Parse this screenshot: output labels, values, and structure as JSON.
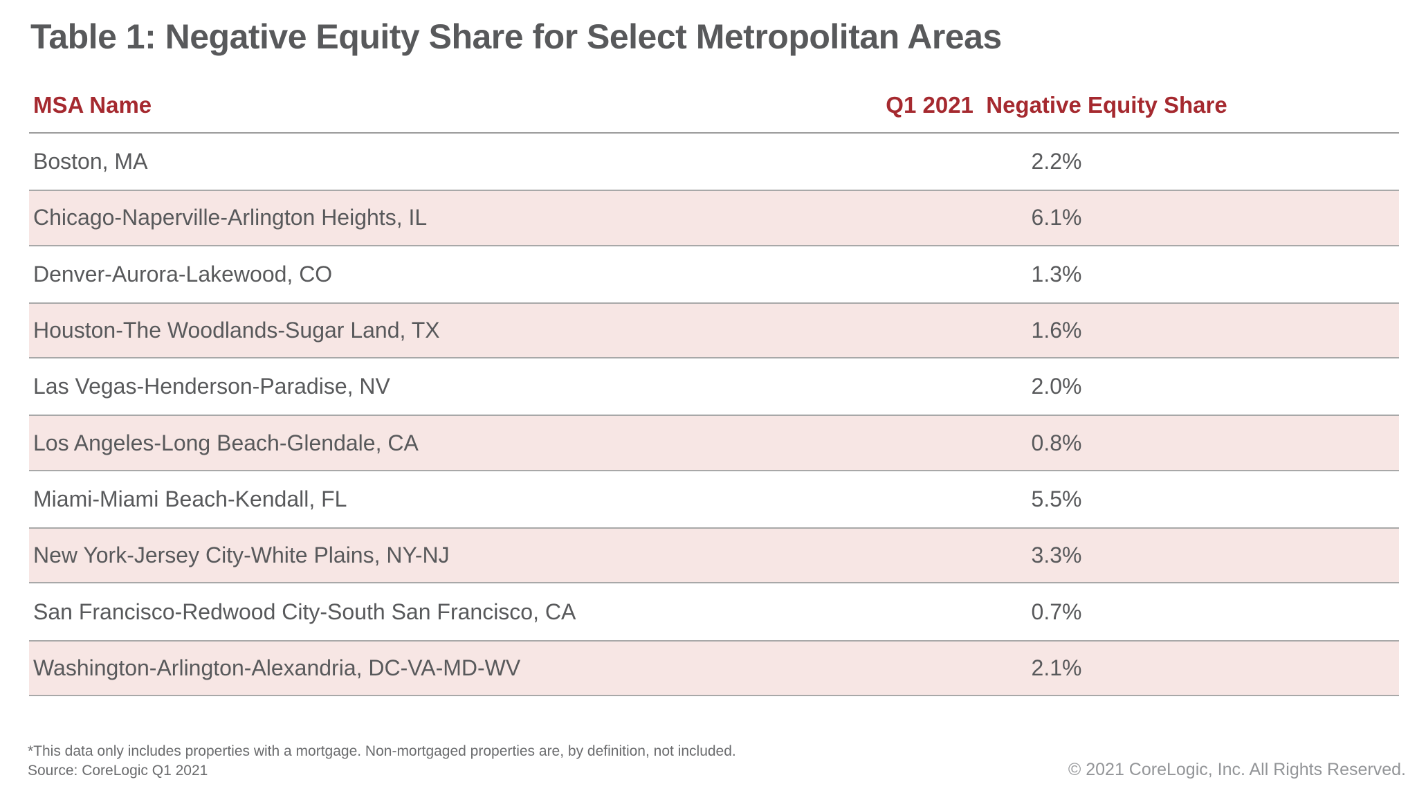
{
  "title": "Table 1: Negative Equity Share for Select Metropolitan Areas",
  "table": {
    "columns": {
      "msa": "MSA Name",
      "share": "Q1 2021  Negative Equity Share"
    },
    "rows": [
      {
        "msa": "Boston, MA",
        "share": "2.2%"
      },
      {
        "msa": "Chicago-Naperville-Arlington Heights, IL",
        "share": "6.1%"
      },
      {
        "msa": "Denver-Aurora-Lakewood, CO",
        "share": "1.3%"
      },
      {
        "msa": "Houston-The Woodlands-Sugar Land, TX",
        "share": "1.6%"
      },
      {
        "msa": "Las Vegas-Henderson-Paradise, NV",
        "share": "2.0%"
      },
      {
        "msa": "Los Angeles-Long Beach-Glendale, CA",
        "share": "0.8%"
      },
      {
        "msa": "Miami-Miami Beach-Kendall, FL",
        "share": "5.5%"
      },
      {
        "msa": "New York-Jersey City-White Plains, NY-NJ",
        "share": "3.3%"
      },
      {
        "msa": "San Francisco-Redwood City-South San Francisco, CA",
        "share": "0.7%"
      },
      {
        "msa": "Washington-Arlington-Alexandria, DC-VA-MD-WV",
        "share": "2.1%"
      }
    ]
  },
  "footnote": "*This data only includes properties with a mortgage. Non-mortgaged properties are, by definition, not included.",
  "source": "Source: CoreLogic Q1 2021",
  "copyright": "© 2021 CoreLogic, Inc. All Rights Reserved.",
  "colors": {
    "text_gray": "#58595b",
    "header_red": "#a5292f",
    "row_alt_pink": "#f7e6e4",
    "row_border_gray": "#a8a8a8",
    "header_line_gray": "#9b9b9b",
    "footnote_gray": "#6a6b6d",
    "copyright_gray": "#939598"
  },
  "chart_data": {
    "type": "table",
    "title": "Table 1: Negative Equity Share for Select Metropolitan Areas",
    "columns": [
      "MSA Name",
      "Q1 2021 Negative Equity Share"
    ],
    "rows": [
      [
        "Boston, MA",
        2.2
      ],
      [
        "Chicago-Naperville-Arlington Heights, IL",
        6.1
      ],
      [
        "Denver-Aurora-Lakewood, CO",
        1.3
      ],
      [
        "Houston-The Woodlands-Sugar Land, TX",
        1.6
      ],
      [
        "Las Vegas-Henderson-Paradise, NV",
        2.0
      ],
      [
        "Los Angeles-Long Beach-Glendale, CA",
        0.8
      ],
      [
        "Miami-Miami Beach-Kendall, FL",
        5.5
      ],
      [
        "New York-Jersey City-White Plains, NY-NJ",
        3.3
      ],
      [
        "San Francisco-Redwood City-South San Francisco, CA",
        0.7
      ],
      [
        "Washington-Arlington-Alexandria, DC-VA-MD-WV",
        2.1
      ]
    ],
    "unit": "%",
    "row_striping": "even rows shaded pink",
    "source_note": "Source: CoreLogic Q1 2021"
  }
}
